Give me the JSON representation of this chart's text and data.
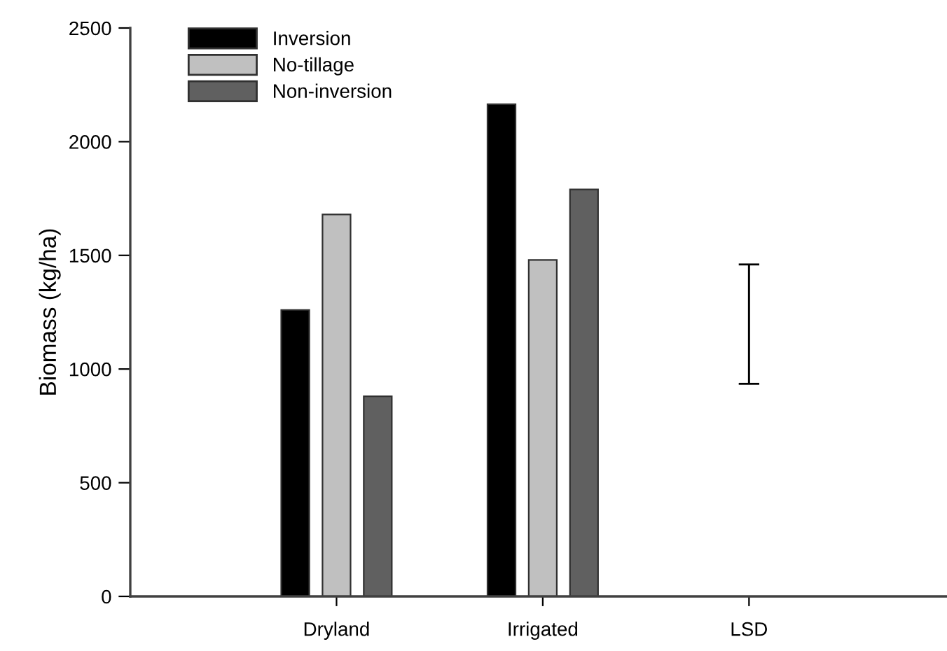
{
  "chart_data": {
    "type": "bar",
    "ylabel": "Biomass (kg/ha)",
    "categories": [
      "Dryland",
      "Irrigated",
      "LSD"
    ],
    "series": [
      {
        "name": "Inversion",
        "color": "#000000",
        "values": [
          1260,
          2165,
          null
        ]
      },
      {
        "name": "No-tillage",
        "color": "#c0c0c0",
        "values": [
          1680,
          1480,
          null
        ]
      },
      {
        "name": "Non-inversion",
        "color": "#606060",
        "values": [
          880,
          1790,
          null
        ]
      },
      {
        "color": "#000000",
        "values": [
          null,
          null,
          525
        ],
        "base": [
          null,
          null,
          935
        ]
      }
    ],
    "ylim": [
      0,
      2500
    ],
    "yticks": [
      0,
      500,
      1000,
      1500,
      2000,
      2500
    ],
    "grid": false,
    "legend": "top left"
  }
}
